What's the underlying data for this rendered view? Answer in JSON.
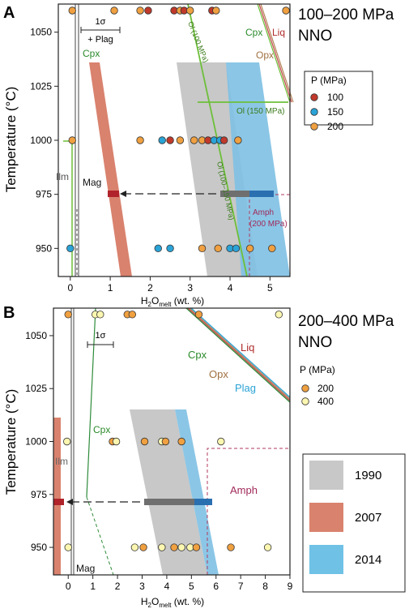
{
  "chart_data": [
    {
      "type": "scatter",
      "panel_label": "A",
      "title": "100–200 MPa",
      "subtitle": "NNO",
      "ylabel": "Temperature (°C)",
      "xlabel_main": "H",
      "xlabel_sub": "2",
      "xlabel_o": "O",
      "xlabel_sub2": "melt",
      "xlabel_unit": " (wt. %)",
      "xlim": [
        -0.3,
        5.5
      ],
      "ylim": [
        937,
        1063
      ],
      "xticks": [
        0,
        1,
        2,
        3,
        4,
        5
      ],
      "yticks": [
        950,
        975,
        1000,
        1025,
        1050
      ],
      "legend_title": "P (MPa)",
      "legend": [
        {
          "name": "100",
          "color": "#c0392b"
        },
        {
          "name": "150",
          "color": "#2aa3d6"
        },
        {
          "name": "200",
          "color": "#f0a040"
        }
      ],
      "sigma_label": "1σ",
      "sigma_sublabel": "+ Plag",
      "labels": {
        "ilm": "Ilm",
        "mag": "Mag",
        "cpx_left": "Cpx",
        "cpx_right": "Cpx",
        "liq": "Liq",
        "opx": "Opx",
        "ol100": "Ol (100 MPa)",
        "ol150": "Ol (150 MPa)",
        "ol100150": "Ol (100–150 MPa)",
        "amph": "Amph",
        "amph_sub": "(200 MPa)"
      },
      "points": [
        {
          "x": 0.05,
          "y": 1060,
          "p": "200"
        },
        {
          "x": 0.05,
          "y": 1000,
          "p": "200"
        },
        {
          "x": 0.0,
          "y": 950,
          "p": "150"
        },
        {
          "x": 1.1,
          "y": 1060,
          "p": "200"
        },
        {
          "x": 1.75,
          "y": 1060,
          "p": "200"
        },
        {
          "x": 1.95,
          "y": 1060,
          "p": "100"
        },
        {
          "x": 2.6,
          "y": 1060,
          "p": "100"
        },
        {
          "x": 2.75,
          "y": 1060,
          "p": "200"
        },
        {
          "x": 2.85,
          "y": 1060,
          "p": "100"
        },
        {
          "x": 3.0,
          "y": 1060,
          "p": "200"
        },
        {
          "x": 3.55,
          "y": 1060,
          "p": "100"
        },
        {
          "x": 3.65,
          "y": 1060,
          "p": "200"
        },
        {
          "x": 5.4,
          "y": 1060,
          "p": "200"
        },
        {
          "x": 1.75,
          "y": 1000,
          "p": "200"
        },
        {
          "x": 2.3,
          "y": 1000,
          "p": "150"
        },
        {
          "x": 2.5,
          "y": 1000,
          "p": "100"
        },
        {
          "x": 2.75,
          "y": 1000,
          "p": "200"
        },
        {
          "x": 3.1,
          "y": 1000,
          "p": "200"
        },
        {
          "x": 3.3,
          "y": 1000,
          "p": "200"
        },
        {
          "x": 3.45,
          "y": 1000,
          "p": "100"
        },
        {
          "x": 3.6,
          "y": 1000,
          "p": "150"
        },
        {
          "x": 3.75,
          "y": 1000,
          "p": "150"
        },
        {
          "x": 3.85,
          "y": 1000,
          "p": "100"
        },
        {
          "x": 4.2,
          "y": 1000,
          "p": "200"
        },
        {
          "x": 2.2,
          "y": 950,
          "p": "150"
        },
        {
          "x": 2.5,
          "y": 950,
          "p": "150"
        },
        {
          "x": 3.3,
          "y": 950,
          "p": "200"
        },
        {
          "x": 3.7,
          "y": 950,
          "p": "200"
        },
        {
          "x": 4.0,
          "y": 950,
          "p": "150"
        },
        {
          "x": 4.15,
          "y": 950,
          "p": "150"
        },
        {
          "x": 4.5,
          "y": 950,
          "p": "200"
        },
        {
          "x": 5.05,
          "y": 950,
          "p": "200"
        }
      ]
    },
    {
      "type": "scatter",
      "panel_label": "B",
      "title": "200–400 MPa",
      "subtitle": "NNO",
      "ylabel": "Temperature (°C)",
      "xlabel_main": "H",
      "xlabel_sub": "2",
      "xlabel_o": "O",
      "xlabel_sub2": "melt",
      "xlabel_unit": " (wt. %)",
      "xlim": [
        -0.6,
        9
      ],
      "ylim": [
        937,
        1063
      ],
      "xticks": [
        0,
        1,
        2,
        3,
        4,
        5,
        6,
        7,
        8,
        9
      ],
      "yticks": [
        950,
        975,
        1000,
        1025,
        1050
      ],
      "legend_title": "P (MPa)",
      "legend": [
        {
          "name": "200",
          "color": "#f0a040"
        },
        {
          "name": "400",
          "color": "#fbf6b0"
        }
      ],
      "sigma_label": "1σ",
      "labels": {
        "ilm": "Ilm",
        "mag": "Mag",
        "cpx_left": "Cpx",
        "cpx_right": "Cpx",
        "liq": "Liq",
        "opx": "Opx",
        "plag": "Plag",
        "amph": "Amph"
      },
      "points": [
        {
          "x": 0.0,
          "y": 1060,
          "p": "200"
        },
        {
          "x": 1.1,
          "y": 1060,
          "p": "400"
        },
        {
          "x": 1.3,
          "y": 1060,
          "p": "400"
        },
        {
          "x": 2.4,
          "y": 1060,
          "p": "200"
        },
        {
          "x": 2.6,
          "y": 1060,
          "p": "200"
        },
        {
          "x": 5.3,
          "y": 1060,
          "p": "200"
        },
        {
          "x": 8.55,
          "y": 1060,
          "p": "400"
        },
        {
          "x": -0.05,
          "y": 1000,
          "p": "400"
        },
        {
          "x": 1.8,
          "y": 1000,
          "p": "200"
        },
        {
          "x": 1.95,
          "y": 1000,
          "p": "400"
        },
        {
          "x": 3.1,
          "y": 1000,
          "p": "200"
        },
        {
          "x": 3.8,
          "y": 1000,
          "p": "400"
        },
        {
          "x": 3.95,
          "y": 1000,
          "p": "200"
        },
        {
          "x": 4.6,
          "y": 1000,
          "p": "200"
        },
        {
          "x": 6.2,
          "y": 1000,
          "p": "400"
        },
        {
          "x": 0.0,
          "y": 950,
          "p": "400"
        },
        {
          "x": 2.7,
          "y": 950,
          "p": "400"
        },
        {
          "x": 3.05,
          "y": 950,
          "p": "200"
        },
        {
          "x": 3.8,
          "y": 950,
          "p": "400"
        },
        {
          "x": 4.3,
          "y": 950,
          "p": "200"
        },
        {
          "x": 4.6,
          "y": 950,
          "p": "400"
        },
        {
          "x": 4.95,
          "y": 950,
          "p": "400"
        },
        {
          "x": 5.2,
          "y": 950,
          "p": "200"
        },
        {
          "x": 6.6,
          "y": 950,
          "p": "200"
        },
        {
          "x": 8.1,
          "y": 950,
          "p": "400"
        }
      ]
    }
  ],
  "study_legend": [
    {
      "name": "1990",
      "color": "#c8c8c8"
    },
    {
      "name": "2007",
      "color": "#d9826e"
    },
    {
      "name": "2014",
      "color": "#6fc1e6"
    }
  ]
}
